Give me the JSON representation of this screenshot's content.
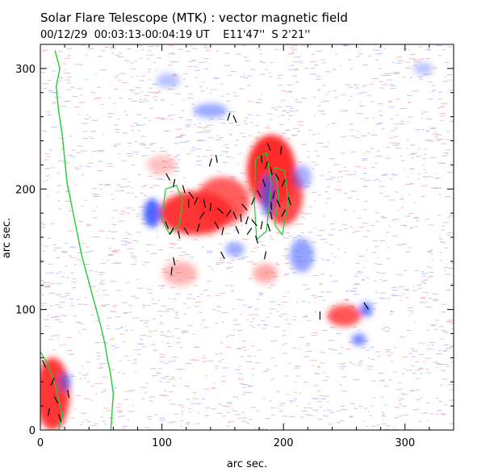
{
  "chart_data": {
    "type": "heatmap",
    "title": "Solar Flare Telescope (MTK) : vector magnetic field",
    "subtitle": "00/12/29  00:03:13-00:04:19 UT    E11'47''  S 2'21''",
    "xlabel": "arc sec.",
    "ylabel": "arc sec.",
    "xlim": [
      0,
      340
    ],
    "ylim": [
      0,
      320
    ],
    "xticks": [
      0,
      100,
      200,
      300
    ],
    "yticks": [
      0,
      100,
      200,
      300
    ],
    "grid": false,
    "colors": {
      "positive_field": "#ff2a2a",
      "negative_field": "#3a55ff",
      "limb_contour": "#22cc33",
      "vectors": "#000000"
    },
    "positive_regions": [
      {
        "x": 128,
        "y": 180,
        "rx": 30,
        "ry": 18,
        "strength": 0.95
      },
      {
        "x": 150,
        "y": 190,
        "rx": 22,
        "ry": 20,
        "strength": 0.75
      },
      {
        "x": 190,
        "y": 215,
        "rx": 20,
        "ry": 30,
        "strength": 1.0
      },
      {
        "x": 200,
        "y": 195,
        "rx": 16,
        "ry": 25,
        "strength": 0.85
      },
      {
        "x": 250,
        "y": 95,
        "rx": 14,
        "ry": 9,
        "strength": 0.8
      },
      {
        "x": 10,
        "y": 30,
        "rx": 14,
        "ry": 30,
        "strength": 0.95
      },
      {
        "x": 115,
        "y": 130,
        "rx": 14,
        "ry": 10,
        "strength": 0.35
      },
      {
        "x": 185,
        "y": 130,
        "rx": 10,
        "ry": 8,
        "strength": 0.4
      },
      {
        "x": 100,
        "y": 220,
        "rx": 12,
        "ry": 8,
        "strength": 0.3
      }
    ],
    "negative_regions": [
      {
        "x": 92,
        "y": 180,
        "rx": 7,
        "ry": 12,
        "strength": 0.9
      },
      {
        "x": 187,
        "y": 195,
        "rx": 6,
        "ry": 18,
        "strength": 0.7
      },
      {
        "x": 215,
        "y": 210,
        "rx": 8,
        "ry": 10,
        "strength": 0.45
      },
      {
        "x": 215,
        "y": 145,
        "rx": 10,
        "ry": 14,
        "strength": 0.55
      },
      {
        "x": 160,
        "y": 150,
        "rx": 8,
        "ry": 6,
        "strength": 0.5
      },
      {
        "x": 268,
        "y": 100,
        "rx": 5,
        "ry": 6,
        "strength": 0.8
      },
      {
        "x": 262,
        "y": 75,
        "rx": 6,
        "ry": 5,
        "strength": 0.7
      },
      {
        "x": 140,
        "y": 265,
        "rx": 14,
        "ry": 6,
        "strength": 0.5
      },
      {
        "x": 20,
        "y": 40,
        "rx": 5,
        "ry": 8,
        "strength": 0.6
      },
      {
        "x": 105,
        "y": 290,
        "rx": 10,
        "ry": 6,
        "strength": 0.35
      },
      {
        "x": 315,
        "y": 300,
        "rx": 8,
        "ry": 5,
        "strength": 0.35
      }
    ],
    "limb_contour": [
      [
        12,
        315
      ],
      [
        16,
        300
      ],
      [
        13,
        285
      ],
      [
        15,
        265
      ],
      [
        18,
        245
      ],
      [
        20,
        225
      ],
      [
        22,
        205
      ],
      [
        25,
        190
      ],
      [
        28,
        175
      ],
      [
        31,
        160
      ],
      [
        34,
        145
      ],
      [
        38,
        130
      ],
      [
        42,
        115
      ],
      [
        46,
        100
      ],
      [
        50,
        85
      ],
      [
        53,
        72
      ],
      [
        55,
        60
      ],
      [
        58,
        45
      ],
      [
        60,
        30
      ],
      [
        59,
        15
      ],
      [
        58,
        0
      ]
    ],
    "contour_loops": [
      [
        [
          103,
          200
        ],
        [
          112,
          203
        ],
        [
          117,
          190
        ],
        [
          114,
          170
        ],
        [
          106,
          163
        ],
        [
          100,
          175
        ],
        [
          103,
          200
        ]
      ],
      [
        [
          177,
          225
        ],
        [
          186,
          230
        ],
        [
          190,
          205
        ],
        [
          186,
          165
        ],
        [
          178,
          158
        ],
        [
          176,
          190
        ],
        [
          177,
          225
        ]
      ],
      [
        [
          193,
          218
        ],
        [
          201,
          215
        ],
        [
          204,
          190
        ],
        [
          199,
          162
        ],
        [
          193,
          170
        ],
        [
          196,
          195
        ],
        [
          193,
          218
        ]
      ],
      [
        [
          0,
          65
        ],
        [
          6,
          55
        ],
        [
          13,
          35
        ],
        [
          18,
          12
        ],
        [
          15,
          0
        ]
      ]
    ],
    "vectors": [
      [
        105,
        210,
        0.5
      ],
      [
        110,
        205,
        -0.2
      ],
      [
        118,
        200,
        0.3
      ],
      [
        124,
        195,
        0.6
      ],
      [
        128,
        190,
        -0.4
      ],
      [
        135,
        188,
        0.2
      ],
      [
        140,
        185,
        -0.1
      ],
      [
        148,
        182,
        0.8
      ],
      [
        155,
        180,
        -0.6
      ],
      [
        160,
        178,
        0.4
      ],
      [
        165,
        176,
        0.1
      ],
      [
        170,
        174,
        -0.3
      ],
      [
        176,
        172,
        0.7
      ],
      [
        182,
        170,
        -0.2
      ],
      [
        188,
        168,
        0.3
      ],
      [
        104,
        170,
        0.4
      ],
      [
        108,
        165,
        -0.5
      ],
      [
        114,
        162,
        0.2
      ],
      [
        120,
        165,
        0.6
      ],
      [
        130,
        168,
        -0.3
      ],
      [
        145,
        170,
        0.5
      ],
      [
        150,
        165,
        -0.2
      ],
      [
        162,
        166,
        0.4
      ],
      [
        172,
        165,
        -0.6
      ],
      [
        178,
        158,
        0.3
      ],
      [
        182,
        225,
        0.1
      ],
      [
        186,
        220,
        -0.3
      ],
      [
        190,
        215,
        0.2
      ],
      [
        195,
        210,
        0.5
      ],
      [
        200,
        205,
        -0.4
      ],
      [
        184,
        205,
        0.3
      ],
      [
        192,
        195,
        -0.2
      ],
      [
        196,
        188,
        0.4
      ],
      [
        200,
        180,
        -0.5
      ],
      [
        190,
        178,
        0.2
      ],
      [
        205,
        190,
        0.3
      ],
      [
        198,
        232,
        -0.1
      ],
      [
        188,
        235,
        0.4
      ],
      [
        145,
        225,
        0.2
      ],
      [
        140,
        222,
        -0.3
      ],
      [
        110,
        140,
        0.2
      ],
      [
        108,
        132,
        -0.1
      ],
      [
        150,
        145,
        0.5
      ],
      [
        185,
        145,
        -0.2
      ],
      [
        230,
        95,
        0.0
      ],
      [
        268,
        103,
        0.6
      ],
      [
        10,
        40,
        -0.4
      ],
      [
        13,
        25,
        0.5
      ],
      [
        7,
        15,
        -0.2
      ],
      [
        16,
        10,
        0.3
      ],
      [
        3,
        55,
        0.4
      ],
      [
        23,
        30,
        0.2
      ],
      [
        155,
        260,
        -0.3
      ],
      [
        160,
        258,
        0.4
      ],
      [
        122,
        188,
        0.0
      ],
      [
        133,
        178,
        -0.6
      ],
      [
        168,
        185,
        0.7
      ],
      [
        175,
        190,
        -0.4
      ],
      [
        180,
        196,
        0.5
      ],
      [
        190,
        186,
        0.1
      ]
    ]
  }
}
